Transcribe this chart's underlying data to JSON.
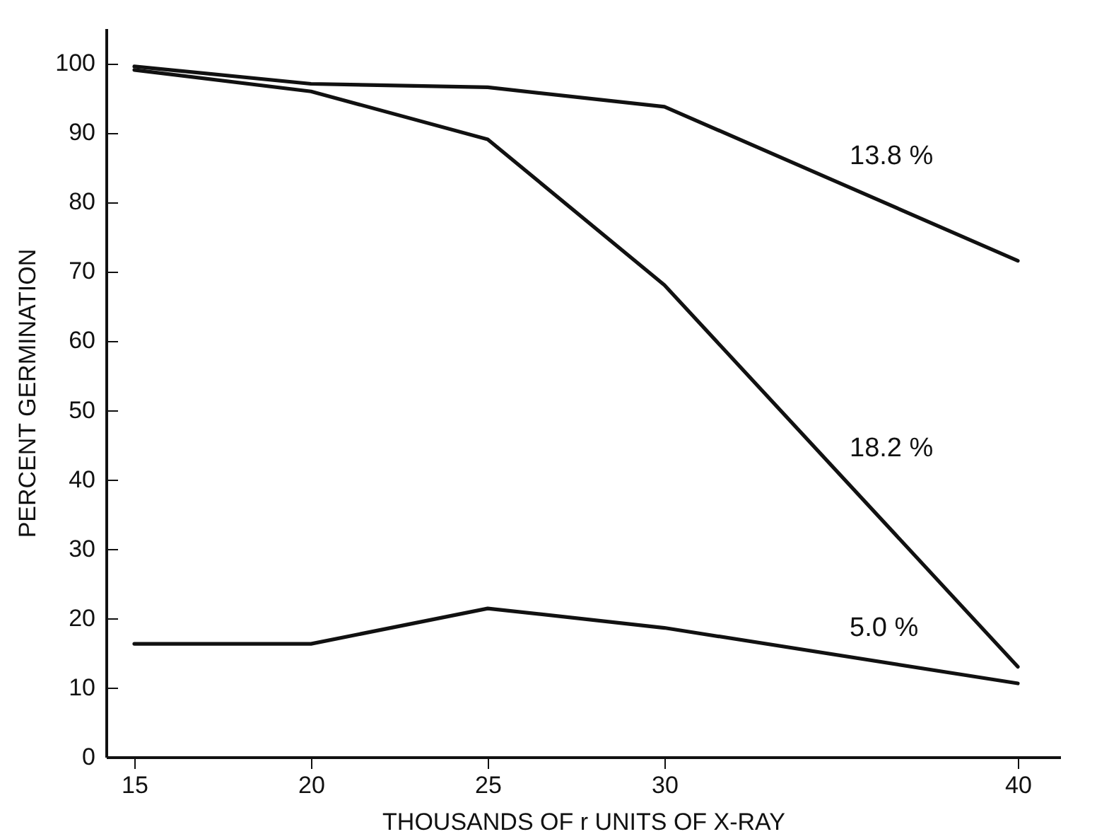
{
  "chart_data": {
    "type": "line",
    "xlabel": "THOUSANDS OF r UNITS OF X-RAY",
    "ylabel": "PERCENT GERMINATION",
    "x": [
      15,
      20,
      25,
      30,
      40
    ],
    "series": [
      {
        "name": "13.8 %",
        "color": "#111111",
        "values": [
          99.5,
          97,
          96.5,
          93.7,
          71.5
        ]
      },
      {
        "name": "18.2 %",
        "color": "#111111",
        "values": [
          99,
          95.9,
          89,
          68,
          13
        ]
      },
      {
        "name": "5.0 %",
        "color": "#111111",
        "values": [
          16.3,
          16.3,
          21.4,
          18.6,
          10.6
        ]
      }
    ],
    "xlim": [
      14.2,
      41.2
    ],
    "xticks": [
      15,
      20,
      25,
      30,
      40
    ],
    "ylim": [
      0,
      105
    ],
    "yticks": [
      0,
      10,
      20,
      30,
      40,
      50,
      60,
      70,
      80,
      90,
      100
    ],
    "grid": false,
    "legend": false,
    "marker": "none",
    "line_style": "solid"
  }
}
